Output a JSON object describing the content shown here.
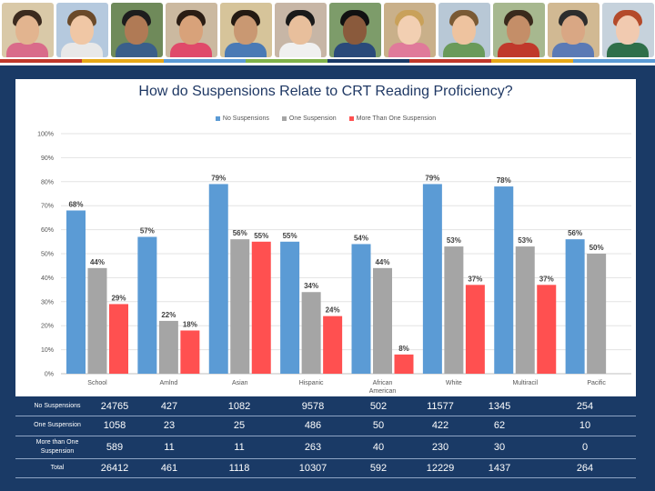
{
  "theme": {
    "blue": "#5b9bd5",
    "gray": "#a5a5a5",
    "red": "#ff5050",
    "navy": "#1a3a66"
  },
  "banner": {
    "photo_count": 12
  },
  "chart_data": {
    "type": "bar",
    "title": "How do Suspensions Relate to CRT Reading Proficiency?",
    "categories": [
      "School",
      "Amlnd",
      "Asian",
      "Hispanic",
      "African American",
      "White",
      "Multiracil",
      "Pacific"
    ],
    "series": [
      {
        "name": "No Suspensions",
        "color": "#5b9bd5",
        "values": [
          68,
          57,
          79,
          55,
          54,
          79,
          78,
          56
        ],
        "labels": [
          "68%",
          "57%",
          "79%",
          "55%",
          "54%",
          "79%",
          "78%",
          "56%"
        ]
      },
      {
        "name": "One Suspension",
        "color": "#a5a5a5",
        "values": [
          44,
          22,
          56,
          34,
          44,
          53,
          53,
          50
        ],
        "labels": [
          "44%",
          "22%",
          "56%",
          "34%",
          "44%",
          "53%",
          "53%",
          "50%"
        ]
      },
      {
        "name": "More Than One Suspension",
        "color": "#ff5050",
        "values": [
          29,
          18,
          55,
          24,
          8,
          37,
          37,
          null
        ],
        "labels": [
          "29%",
          "18%",
          "55%",
          "24%",
          "8%",
          "37%",
          "37%",
          ""
        ]
      }
    ],
    "yticks": [
      "0%",
      "10%",
      "20%",
      "30%",
      "40%",
      "50%",
      "60%",
      "70%",
      "80%",
      "90%",
      "100%"
    ],
    "ylim": [
      0,
      100
    ],
    "grid": true,
    "legend": "top-center"
  },
  "table": {
    "rows": [
      {
        "label": "No Suspensions",
        "values": [
          "24765",
          "427",
          "1082",
          "9578",
          "502",
          "11577",
          "1345",
          "254"
        ]
      },
      {
        "label": "One Suspension",
        "values": [
          "1058",
          "23",
          "25",
          "486",
          "50",
          "422",
          "62",
          "10"
        ]
      },
      {
        "label": "More than One Suspension",
        "values": [
          "589",
          "11",
          "11",
          "263",
          "40",
          "230",
          "30",
          "0"
        ]
      },
      {
        "label": "Total",
        "values": [
          "26412",
          "461",
          "1118",
          "10307",
          "592",
          "12229",
          "1437",
          "264"
        ]
      }
    ]
  }
}
